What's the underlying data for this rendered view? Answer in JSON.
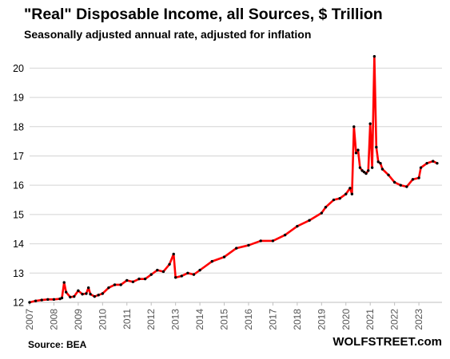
{
  "chart_data": {
    "type": "line",
    "title": "\"Real\" Disposable Income, all Sources, $ Trillion",
    "subtitle": "Seasonally adjusted annual rate, adjusted for inflation",
    "source": "Source: BEA",
    "brand": "WOLFSTREET.com",
    "xlabel": "",
    "ylabel": "",
    "ylim": [
      12,
      20.8
    ],
    "yticks": [
      12,
      13,
      14,
      15,
      16,
      17,
      18,
      19,
      20
    ],
    "xticks": [
      "2007",
      "2008",
      "2009",
      "2010",
      "2011",
      "2012",
      "2013",
      "2014",
      "2015",
      "2016",
      "2017",
      "2018",
      "2019",
      "2020",
      "2021",
      "2022",
      "2023"
    ],
    "grid": "horizontal",
    "legend": "none",
    "line_color": "#ff0000",
    "marker_color": "#000000",
    "series": [
      {
        "x": [
          2007.0,
          2007.25,
          2007.5,
          2007.75,
          2008.0,
          2008.25,
          2008.33,
          2008.42,
          2008.5,
          2008.67,
          2008.83,
          2009.0,
          2009.17,
          2009.33,
          2009.42,
          2009.5,
          2009.67,
          2009.83,
          2010.0,
          2010.25,
          2010.5,
          2010.75,
          2011.0,
          2011.25,
          2011.5,
          2011.75,
          2012.0,
          2012.25,
          2012.5,
          2012.75,
          2012.92,
          2013.0,
          2013.25,
          2013.5,
          2013.75,
          2014.0,
          2014.5,
          2015.0,
          2015.5,
          2016.0,
          2016.5,
          2017.0,
          2017.5,
          2018.0,
          2018.5,
          2019.0,
          2019.17,
          2019.5,
          2019.75,
          2020.0,
          2020.17,
          2020.25,
          2020.33,
          2020.42,
          2020.5,
          2020.58,
          2020.67,
          2020.75,
          2020.83,
          2020.92,
          2021.0,
          2021.08,
          2021.17,
          2021.25,
          2021.33,
          2021.42,
          2021.5,
          2021.75,
          2022.0,
          2022.25,
          2022.5,
          2022.75,
          2023.0,
          2023.08,
          2023.33,
          2023.58,
          2023.75
        ],
        "values": [
          12.0,
          12.05,
          12.08,
          12.1,
          12.1,
          12.12,
          12.15,
          12.68,
          12.35,
          12.18,
          12.2,
          12.4,
          12.28,
          12.3,
          12.5,
          12.28,
          12.2,
          12.25,
          12.3,
          12.5,
          12.6,
          12.6,
          12.75,
          12.7,
          12.8,
          12.8,
          12.95,
          13.1,
          13.05,
          13.3,
          13.65,
          12.85,
          12.9,
          13.0,
          12.95,
          13.1,
          13.4,
          13.55,
          13.85,
          13.95,
          14.1,
          14.1,
          14.3,
          14.6,
          14.8,
          15.05,
          15.25,
          15.5,
          15.55,
          15.7,
          15.9,
          15.7,
          18.0,
          17.1,
          17.2,
          16.6,
          16.5,
          16.45,
          16.4,
          16.5,
          18.1,
          16.6,
          20.4,
          17.3,
          16.8,
          16.75,
          16.55,
          16.35,
          16.1,
          16.0,
          15.95,
          16.2,
          16.25,
          16.6,
          16.75,
          16.82,
          16.75
        ]
      }
    ]
  }
}
